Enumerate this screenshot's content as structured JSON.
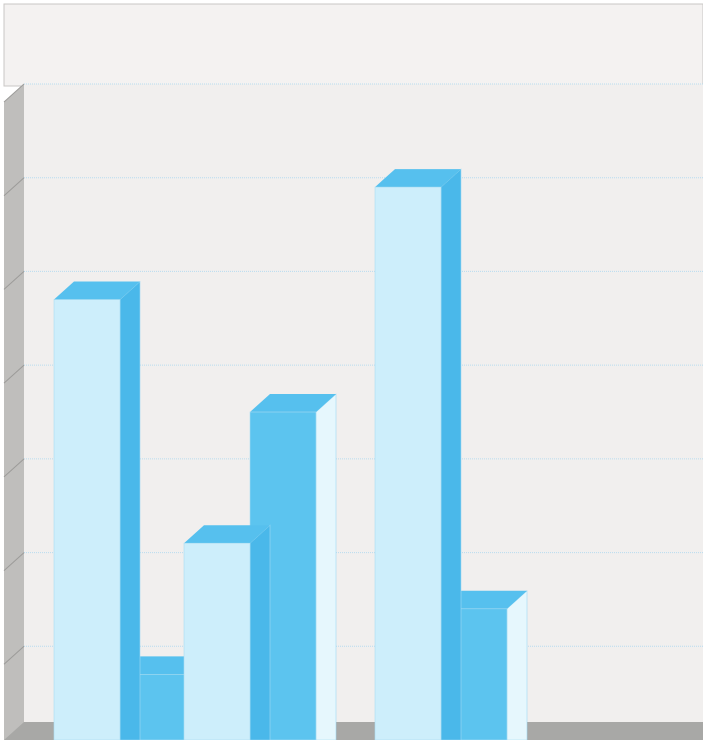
{
  "chart_data": {
    "type": "bar",
    "style": "3d-grouped",
    "title": "",
    "xlabel": "",
    "ylabel": "",
    "ylim": [
      0,
      7
    ],
    "grid": true,
    "gridlines": 7,
    "legend": "none",
    "categories": [
      "",
      "",
      ""
    ],
    "series": [
      {
        "values": [
          4.7,
          2.1,
          5.9
        ]
      },
      {
        "values": [
          0.7,
          3.5,
          1.4
        ]
      }
    ],
    "colors": {
      "series_light": "#cdeefb",
      "series_dark": "#5cc4ef",
      "side_light_series": "#4ab8ea",
      "side_dark_series": "#e6f7fd",
      "top": "#56c0ee",
      "wall": "#f1efee",
      "header_band": "#f4f2f1",
      "grid": "#b8dcef",
      "left_wall": "#bfbebc",
      "floor": "#a8a8a6"
    }
  }
}
